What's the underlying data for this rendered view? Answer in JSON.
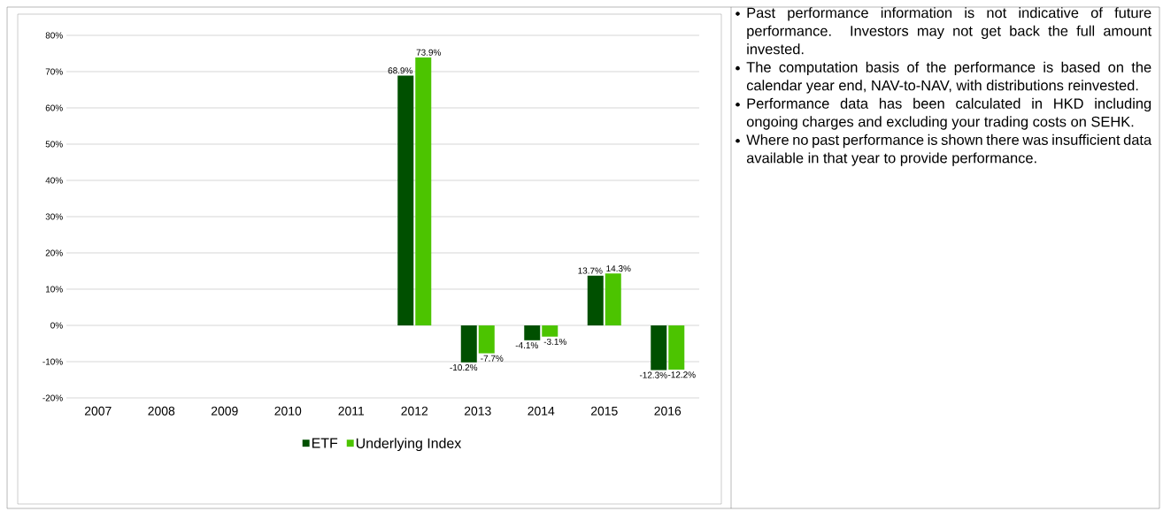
{
  "chart_data": {
    "type": "bar",
    "categories": [
      "2007",
      "2008",
      "2009",
      "2010",
      "2011",
      "2012",
      "2013",
      "2014",
      "2015",
      "2016"
    ],
    "series": [
      {
        "name": "ETF",
        "color": "#005000",
        "values": [
          null,
          null,
          null,
          null,
          null,
          68.9,
          -10.2,
          -4.1,
          13.7,
          -12.3
        ],
        "value_labels": [
          null,
          null,
          null,
          null,
          null,
          "68.9%",
          "-10.2%",
          "-4.1%",
          "13.7%",
          "-12.3%"
        ]
      },
      {
        "name": "Underlying Index",
        "color": "#4cc400",
        "values": [
          null,
          null,
          null,
          null,
          null,
          73.9,
          -7.7,
          -3.1,
          14.3,
          -12.2
        ],
        "value_labels": [
          null,
          null,
          null,
          null,
          null,
          "73.9%",
          "-7.7%",
          "-3.1%",
          "14.3%",
          "-12.2%"
        ]
      }
    ],
    "ylim": [
      -20,
      80
    ],
    "yticks": [
      {
        "value": -20,
        "label": "-20%"
      },
      {
        "value": -10,
        "label": "-10%"
      },
      {
        "value": 0,
        "label": "0%"
      },
      {
        "value": 10,
        "label": "10%"
      },
      {
        "value": 20,
        "label": "20%"
      },
      {
        "value": 30,
        "label": "30%"
      },
      {
        "value": 40,
        "label": "40%"
      },
      {
        "value": 50,
        "label": "50%"
      },
      {
        "value": 60,
        "label": "60%"
      },
      {
        "value": 70,
        "label": "70%"
      },
      {
        "value": 80,
        "label": "80%"
      }
    ],
    "grid": "y",
    "legend": "bottom",
    "annotations": [
      "Past performance information is not indicative of future performance. Investors may not get back the full amount invested.",
      "The computation basis of the performance is based on the calendar year end, NAV-to-NAV, with distributions reinvested.",
      "Performance data has been calculated in HKD including ongoing charges and excluding your trading costs on SEHK.",
      "Where no past performance is shown there was insufficient data available in that year to provide performance."
    ]
  }
}
